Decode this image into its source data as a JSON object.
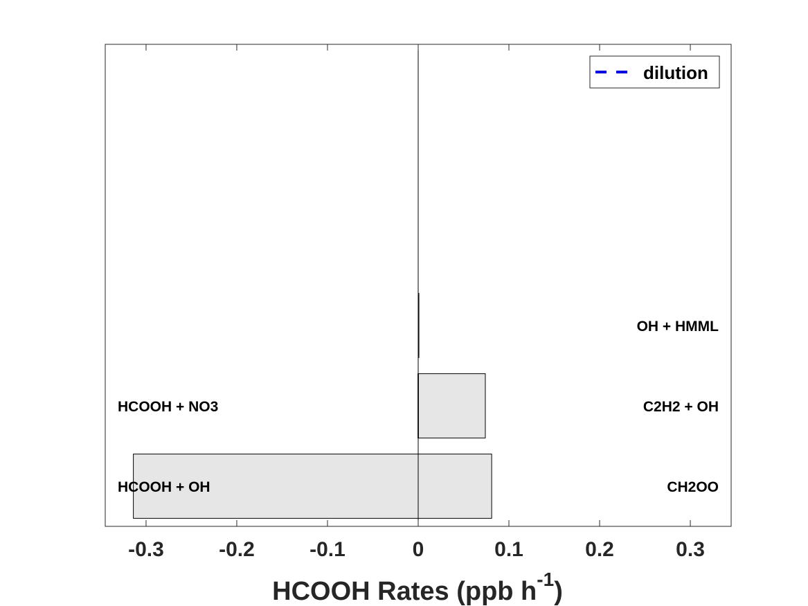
{
  "chart_data": {
    "type": "bar",
    "orientation": "horizontal",
    "stacked": true,
    "xlim": [
      -0.345,
      0.345
    ],
    "xticks": [
      -0.3,
      -0.2,
      -0.1,
      0,
      0.1,
      0.2,
      0.3
    ],
    "xtick_labels": [
      "-0.3",
      "-0.2",
      "-0.1",
      "0",
      "0.1",
      "0.2",
      "0.3"
    ],
    "xlabel": "HCOOH Rates (ppb h",
    "xlabel_superscript": "-1",
    "xlabel_suffix": ")",
    "rows": [
      {
        "positive_label": "CH2OO",
        "positive_value": 0.081,
        "negative_label": "HCOOH + OH",
        "negative_value": -0.314
      },
      {
        "positive_label": "C2H2 + OH",
        "positive_value": 0.074,
        "negative_label": "HCOOH + NO3",
        "negative_value": -0.0003
      },
      {
        "positive_label": "OH + HMML",
        "positive_value": 0.0008,
        "negative_label": "",
        "negative_value": 0
      }
    ],
    "row_slots": 6,
    "bar_color": "#e6e6e6",
    "legend": {
      "placement": "top-right",
      "entries": [
        {
          "name": "dilution",
          "style": "dashed",
          "color": "#0000ff"
        }
      ]
    },
    "grid": false
  }
}
